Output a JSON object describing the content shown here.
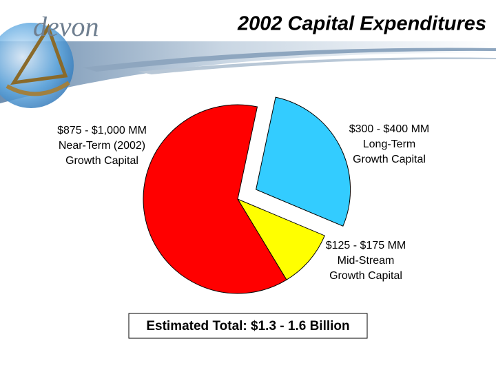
{
  "header": {
    "logo": "devon",
    "title": "2002 Capital Expenditures"
  },
  "chart_data": {
    "type": "pie",
    "slices": [
      {
        "label": [
          "$300 - $400 MM",
          "Long-Term",
          "Growth Capital"
        ],
        "color": "#33ccff",
        "exploded": true
      },
      {
        "label": [
          "$125 - $175 MM",
          "Mid-Stream",
          "Growth Capital"
        ],
        "color": "#ffff00",
        "exploded": false
      },
      {
        "label": [
          "$875 - $1,000 MM",
          "Near-Term (2002)",
          "Growth Capital"
        ],
        "color": "#ff0000",
        "exploded": false
      }
    ],
    "values": [
      28,
      10,
      62
    ]
  },
  "footer": {
    "total": "Estimated Total:  $1.3 - 1.6 Billion"
  }
}
